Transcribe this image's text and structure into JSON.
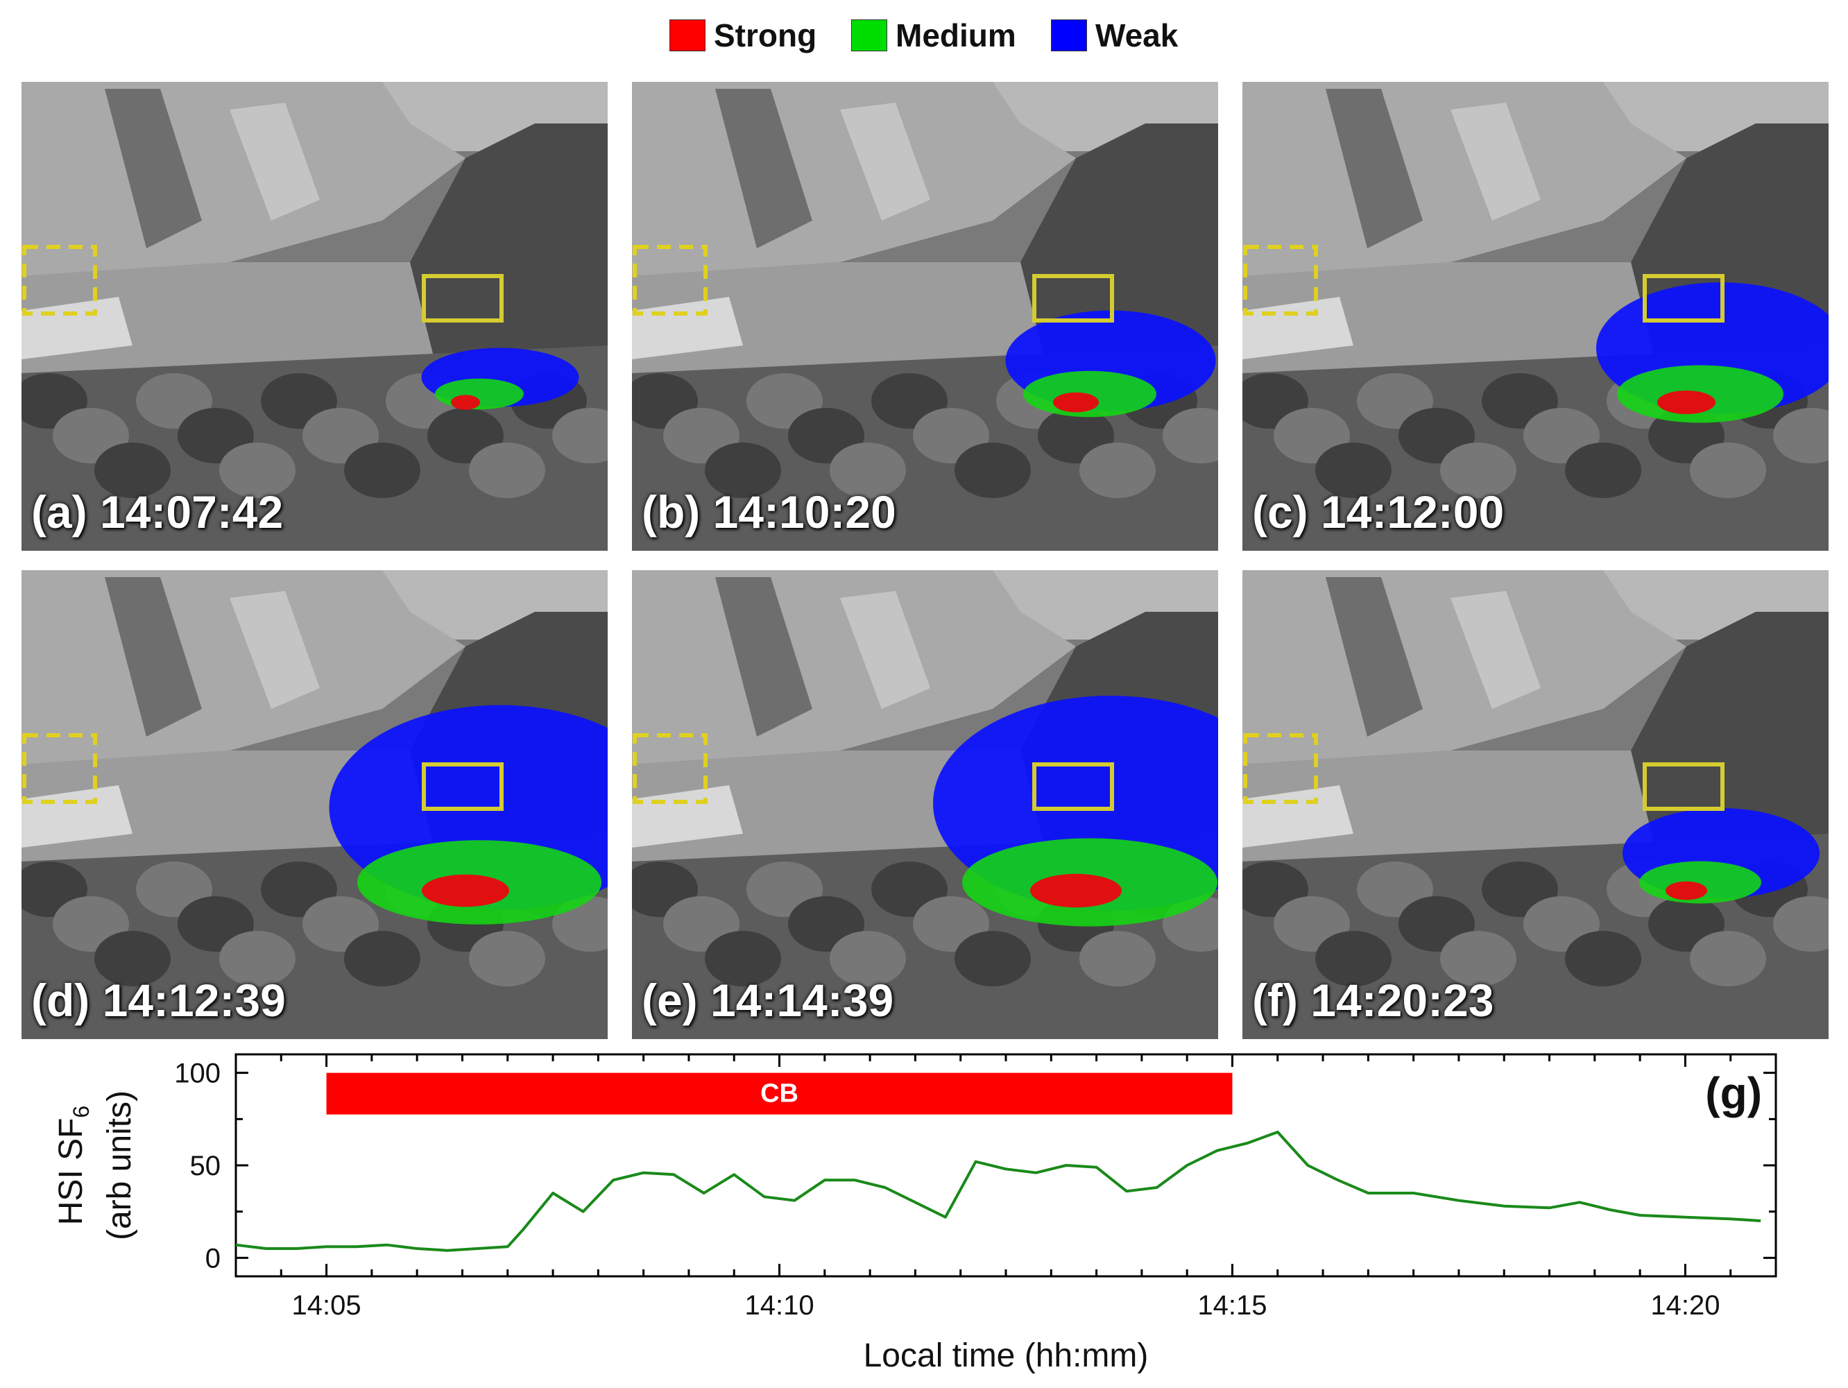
{
  "legend": [
    {
      "label": "Strong",
      "color": "#ff0000"
    },
    {
      "label": "Medium",
      "color": "#00dd00"
    },
    {
      "label": "Weak",
      "color": "#0000ff"
    }
  ],
  "panels": [
    {
      "label": "(a) 14:07:42",
      "plume_level": 0.15
    },
    {
      "label": "(b) 14:10:20",
      "plume_level": 0.35
    },
    {
      "label": "(c) 14:12:00",
      "plume_level": 0.5
    },
    {
      "label": "(d) 14:12:39",
      "plume_level": 0.85
    },
    {
      "label": "(e) 14:14:39",
      "plume_level": 0.9
    },
    {
      "label": "(f) 14:20:23",
      "plume_level": 0.3
    }
  ],
  "chart_data": {
    "type": "line",
    "panel_label": "(g)",
    "xlabel": "Local time (hh:mm)",
    "ylabel_line1": "HSI SF",
    "ylabel_sub": "6",
    "ylabel_line2": "(arb units)",
    "xlim": [
      "14:04",
      "14:21"
    ],
    "ylim": [
      -10,
      110
    ],
    "x_ticks": [
      "14:05",
      "14:10",
      "14:15",
      "14:20"
    ],
    "y_ticks": [
      0,
      50,
      100
    ],
    "bar": {
      "label": "CB",
      "start": "14:05",
      "end": "14:15",
      "color": "#ff0000"
    },
    "series": [
      {
        "color": "#1a8a1a",
        "x": [
          "14:04:00",
          "14:04:20",
          "14:04:40",
          "14:05:00",
          "14:05:20",
          "14:05:40",
          "14:06:00",
          "14:06:20",
          "14:06:40",
          "14:07:00",
          "14:07:10",
          "14:07:30",
          "14:07:50",
          "14:08:10",
          "14:08:30",
          "14:08:50",
          "14:09:10",
          "14:09:30",
          "14:09:50",
          "14:10:10",
          "14:10:30",
          "14:10:50",
          "14:11:10",
          "14:11:30",
          "14:11:50",
          "14:12:10",
          "14:12:30",
          "14:12:50",
          "14:13:10",
          "14:13:30",
          "14:13:50",
          "14:14:10",
          "14:14:30",
          "14:14:50",
          "14:15:10",
          "14:15:30",
          "14:15:50",
          "14:16:10",
          "14:16:30",
          "14:17:00",
          "14:17:30",
          "14:18:00",
          "14:18:30",
          "14:18:50",
          "14:19:10",
          "14:19:30",
          "14:20:00",
          "14:20:30",
          "14:20:50"
        ],
        "values": [
          7,
          5,
          5,
          6,
          6,
          7,
          5,
          4,
          5,
          6,
          15,
          35,
          25,
          42,
          46,
          45,
          35,
          45,
          33,
          31,
          42,
          42,
          38,
          30,
          22,
          52,
          48,
          46,
          50,
          49,
          36,
          38,
          50,
          58,
          62,
          68,
          50,
          42,
          35,
          35,
          31,
          28,
          27,
          30,
          26,
          23,
          22,
          21,
          20
        ]
      }
    ]
  }
}
